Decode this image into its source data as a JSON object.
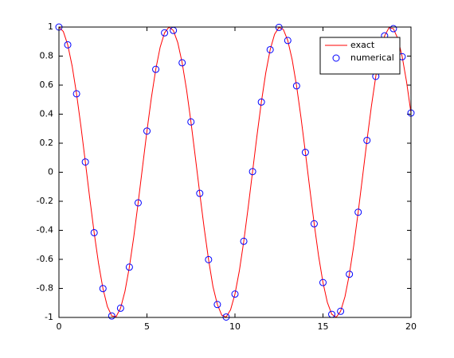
{
  "chart_data": {
    "type": "line",
    "series": [
      {
        "name": "exact",
        "color": "#ff0000",
        "style": "line",
        "x": [
          0,
          0.25,
          0.5,
          0.75,
          1,
          1.25,
          1.5,
          1.75,
          2,
          2.25,
          2.5,
          2.75,
          3,
          3.25,
          3.5,
          3.75,
          4,
          4.25,
          4.5,
          4.75,
          5,
          5.25,
          5.5,
          5.75,
          6,
          6.25,
          6.5,
          6.75,
          7,
          7.25,
          7.5,
          7.75,
          8,
          8.25,
          8.5,
          8.75,
          9,
          9.25,
          9.5,
          9.75,
          10,
          10.25,
          10.5,
          10.75,
          11,
          11.25,
          11.5,
          11.75,
          12,
          12.25,
          12.5,
          12.75,
          13,
          13.25,
          13.5,
          13.75,
          14,
          14.25,
          14.5,
          14.75,
          15,
          15.25,
          15.5,
          15.75,
          16,
          16.25,
          16.5,
          16.75,
          17,
          17.25,
          17.5,
          17.75,
          18,
          18.25,
          18.5,
          18.75,
          19,
          19.25,
          19.5,
          19.75,
          20
        ],
        "values": [
          1,
          0.9689,
          0.8776,
          0.7317,
          0.5403,
          0.3153,
          0.0707,
          -0.1782,
          -0.4161,
          -0.6282,
          -0.8011,
          -0.9243,
          -0.99,
          -0.9941,
          -0.9365,
          -0.8206,
          -0.6536,
          -0.4461,
          -0.2108,
          0.0376,
          0.2837,
          0.5121,
          0.7087,
          0.8612,
          0.9602,
          0.9997,
          0.9766,
          0.893,
          0.7539,
          0.5683,
          0.3466,
          0.1022,
          -0.1455,
          -0.3837,
          -0.602,
          -0.7877,
          -0.9111,
          -0.9848,
          -0.9972,
          -0.9476,
          -0.8391,
          -0.6782,
          -0.4755,
          -0.2431,
          0.0044,
          0.2516,
          0.4833,
          0.6849,
          0.8439,
          0.9504,
          0.9978,
          0.9832,
          0.9074,
          0.7754,
          0.5949,
          0.378,
          0.1367,
          -0.1126,
          -0.3549,
          -0.5761,
          -0.7597,
          -0.8969,
          -0.9785,
          -0.9991,
          -0.9577,
          -0.8567,
          -0.7024,
          -0.504,
          -0.2752,
          -0.0288,
          0.2194,
          0.454,
          0.6603,
          0.8256,
          0.9395,
          0.995,
          0.9887,
          0.9209,
          0.7958,
          0.6216,
          0.4081
        ]
      },
      {
        "name": "numerical",
        "color": "#0000ff",
        "style": "marker",
        "x": [
          0,
          0.5,
          1,
          1.5,
          2,
          2.5,
          3,
          3.5,
          4,
          4.5,
          5,
          5.5,
          6,
          6.5,
          7,
          7.5,
          8,
          8.5,
          9,
          9.5,
          10,
          10.5,
          11,
          11.5,
          12,
          12.5,
          13,
          13.5,
          14,
          14.5,
          15,
          15.5,
          16,
          16.5,
          17,
          17.5,
          18,
          18.5,
          19,
          19.5,
          20
        ],
        "values": [
          1,
          0.8776,
          0.5403,
          0.0707,
          -0.4161,
          -0.8011,
          -0.99,
          -0.9365,
          -0.6536,
          -0.2108,
          0.2837,
          0.7087,
          0.9602,
          0.9766,
          0.7539,
          0.3466,
          -0.1455,
          -0.602,
          -0.9111,
          -0.9972,
          -0.8391,
          -0.4755,
          0.0044,
          0.4833,
          0.8439,
          0.9978,
          0.9074,
          0.5949,
          0.1367,
          -0.3549,
          -0.7597,
          -0.9785,
          -0.9577,
          -0.7024,
          -0.2752,
          0.2194,
          0.6603,
          0.9395,
          0.9887,
          0.7958,
          0.4081
        ]
      }
    ],
    "xlim": [
      0,
      20
    ],
    "xticks": [
      0,
      5,
      10,
      15,
      20
    ],
    "ylim": [
      -1,
      1
    ],
    "yticks": [
      -1,
      -0.8,
      -0.6,
      -0.4,
      -0.2,
      0,
      0.2,
      0.4,
      0.6,
      0.8,
      1
    ],
    "grid": false,
    "legend": "northeast"
  }
}
